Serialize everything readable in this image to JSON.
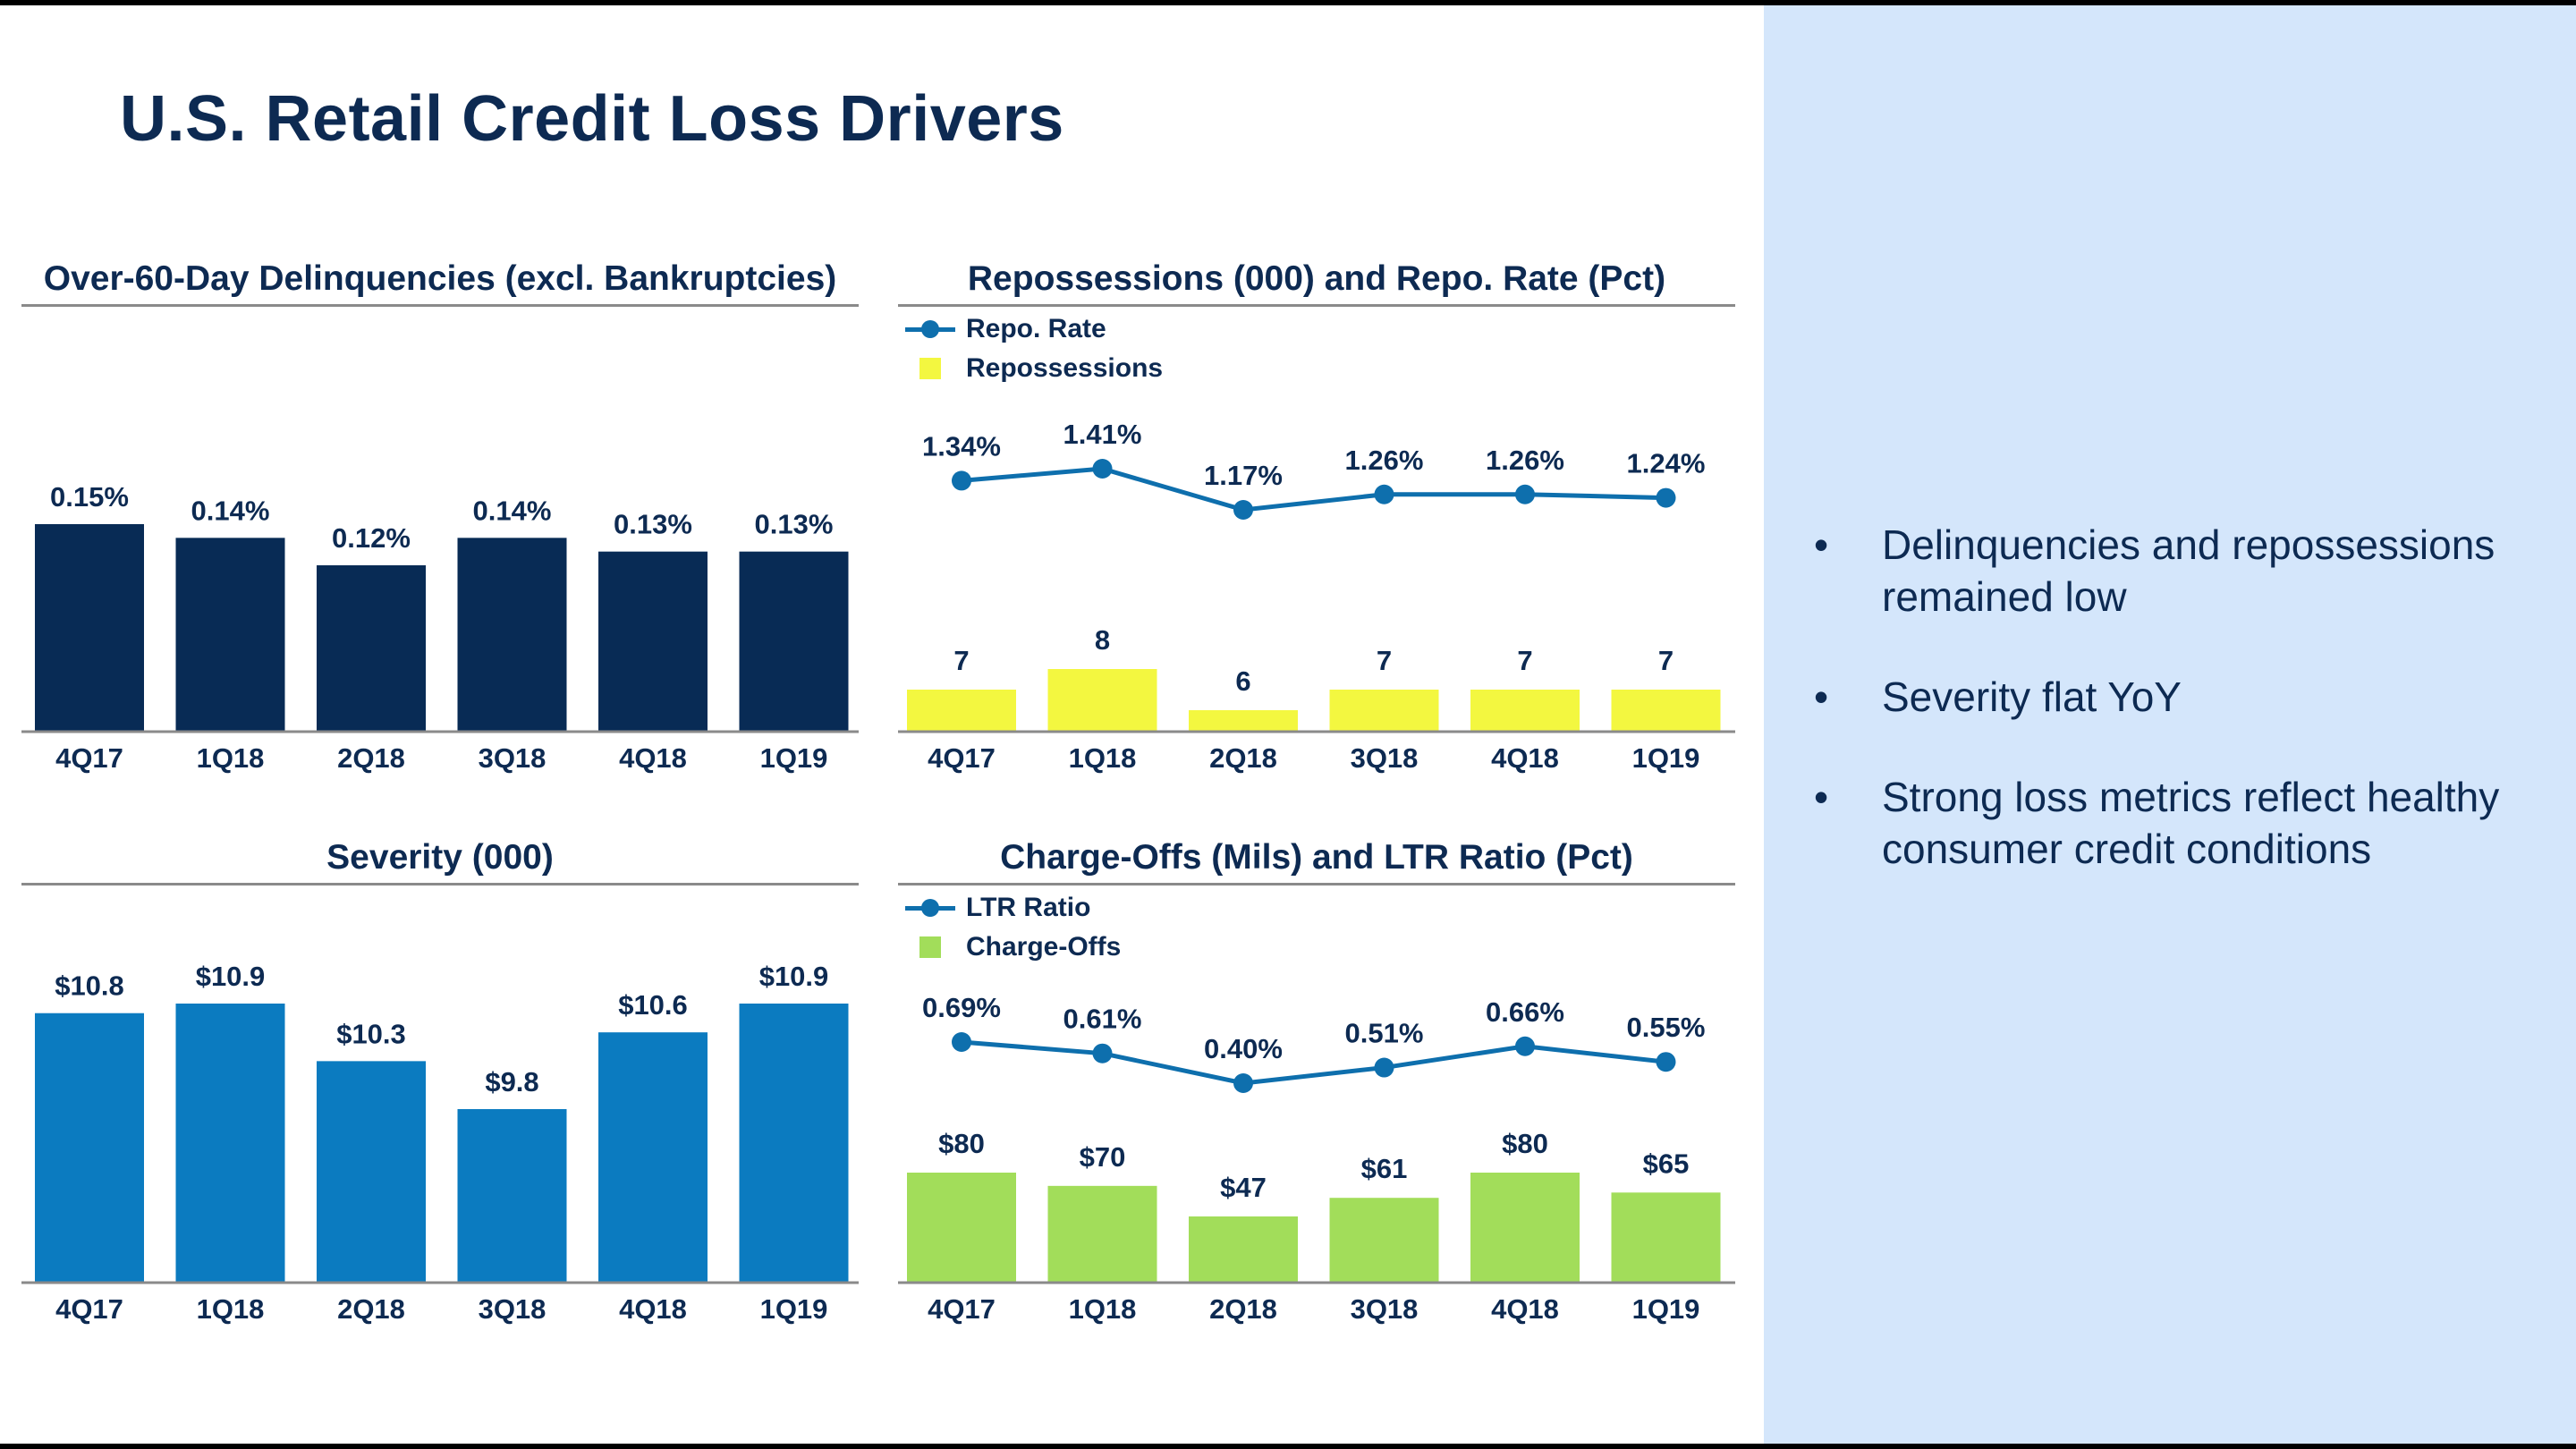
{
  "title": "U.S. Retail Credit Loss Drivers",
  "colors": {
    "navy": "#082b55",
    "blue": "#0b7bc0",
    "line": "#0e6fad",
    "yellow": "#f3f740",
    "green": "#a2dd5a",
    "panel": "#d4e6fb",
    "text": "#0d2a52"
  },
  "bullets": [
    "Delinquencies and repossessions remained low",
    "Severity flat YoY",
    "Strong loss metrics reflect healthy consumer credit conditions"
  ],
  "chart_data": [
    {
      "type": "bar",
      "title": "Over-60-Day Delinquencies (excl. Bankruptcies)",
      "categories": [
        "4Q17",
        "1Q18",
        "2Q18",
        "3Q18",
        "4Q18",
        "1Q19"
      ],
      "values": [
        0.15,
        0.14,
        0.12,
        0.14,
        0.13,
        0.13
      ],
      "labels": [
        "0.15%",
        "0.14%",
        "0.12%",
        "0.14%",
        "0.13%",
        "0.13%"
      ],
      "ylim": [
        0,
        0.16
      ],
      "color": "#082b55"
    },
    {
      "type": "bar+line",
      "title": "Repossessions (000) and Repo. Rate (Pct)",
      "categories": [
        "4Q17",
        "1Q18",
        "2Q18",
        "3Q18",
        "4Q18",
        "1Q19"
      ],
      "legend": [
        "Repo. Rate",
        "Repossessions"
      ],
      "line": {
        "name": "Repo. Rate",
        "values": [
          1.34,
          1.41,
          1.17,
          1.26,
          1.26,
          1.24
        ],
        "labels": [
          "1.34%",
          "1.41%",
          "1.17%",
          "1.26%",
          "1.26%",
          "1.24%"
        ],
        "color": "#0e6fad"
      },
      "bars": {
        "name": "Repossessions",
        "values": [
          7,
          8,
          6,
          7,
          7,
          7
        ],
        "labels": [
          "7",
          "8",
          "6",
          "7",
          "7",
          "7"
        ],
        "color": "#f3f740"
      }
    },
    {
      "type": "bar",
      "title": "Severity (000)",
      "categories": [
        "4Q17",
        "1Q18",
        "2Q18",
        "3Q18",
        "4Q18",
        "1Q19"
      ],
      "values": [
        10.8,
        10.9,
        10.3,
        9.8,
        10.6,
        10.9
      ],
      "labels": [
        "$10.8",
        "$10.9",
        "$10.3",
        "$9.8",
        "$10.6",
        "$10.9"
      ],
      "color": "#0b7bc0"
    },
    {
      "type": "bar+line",
      "title": "Charge-Offs (Mils) and LTR Ratio (Pct)",
      "categories": [
        "4Q17",
        "1Q18",
        "2Q18",
        "3Q18",
        "4Q18",
        "1Q19"
      ],
      "legend": [
        "LTR Ratio",
        "Charge-Offs"
      ],
      "line": {
        "name": "LTR Ratio",
        "values": [
          0.69,
          0.61,
          0.4,
          0.51,
          0.66,
          0.55
        ],
        "labels": [
          "0.69%",
          "0.61%",
          "0.40%",
          "0.51%",
          "0.66%",
          "0.55%"
        ],
        "color": "#0e6fad"
      },
      "bars": {
        "name": "Charge-Offs",
        "values": [
          80,
          70,
          47,
          61,
          80,
          65
        ],
        "labels": [
          "$80",
          "$70",
          "$47",
          "$61",
          "$80",
          "$65"
        ],
        "color": "#a2dd5a"
      }
    }
  ]
}
